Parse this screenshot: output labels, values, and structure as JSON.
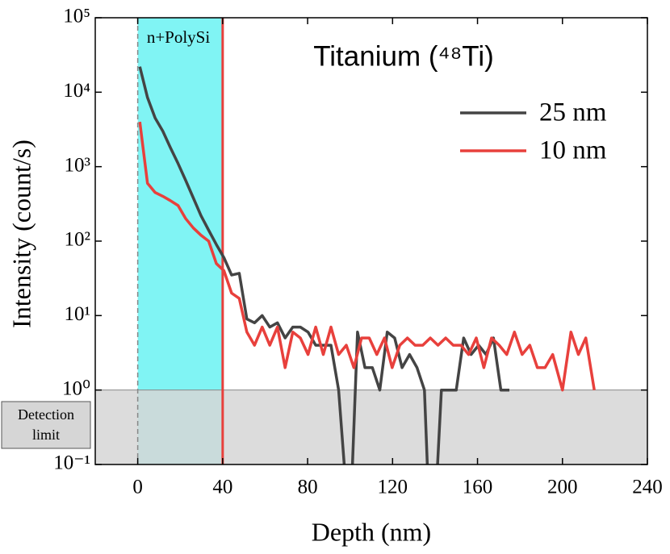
{
  "chart_data": {
    "type": "line",
    "title": "Titanium (⁴⁸Ti)",
    "x_label": "Depth (nm)",
    "y_label": "Intensity (count/s)",
    "log_y": true,
    "legend": "upper right",
    "xlim": [
      -20,
      240
    ],
    "xticks": [
      0,
      40,
      80,
      120,
      160,
      200,
      240
    ],
    "ylim": [
      0.1,
      100000
    ],
    "yticks": [
      {
        "value": 0.1,
        "label": "10⁻¹"
      },
      {
        "value": 1,
        "label": "10⁰"
      },
      {
        "value": 10,
        "label": "10¹"
      },
      {
        "value": 100,
        "label": "10²"
      },
      {
        "value": 1000,
        "label": "10³"
      },
      {
        "value": 10000,
        "label": "10⁴"
      },
      {
        "value": 100000,
        "label": "10⁵"
      }
    ],
    "region": {
      "label": "n+PolySi",
      "x": [
        0,
        40
      ],
      "color": "#80f4f4"
    },
    "boundary": {
      "x": 40,
      "color": "#e8403c"
    },
    "surface": {
      "x": 0,
      "color": "#888888"
    },
    "detection_limit": {
      "label": [
        "Detection",
        "limit"
      ],
      "y": 1,
      "color": "#d6d6d6"
    },
    "series": [
      {
        "name": "25 nm",
        "color": "#444444",
        "x": [
          1,
          4.6,
          8.2,
          11.8,
          15.4,
          19,
          22.6,
          26.2,
          29.8,
          33.4,
          37,
          40.6,
          44.2,
          47.8,
          51.4,
          55,
          58.6,
          62.2,
          65.8,
          69.4,
          73,
          76.6,
          80.2,
          83.8,
          87.4,
          91,
          94.6,
          97.5,
          101,
          103.5,
          107,
          110.5,
          114,
          117.5,
          121,
          124.5,
          128,
          131.5,
          135,
          136.5,
          141,
          143,
          146.5,
          150,
          153.5,
          157,
          160.5,
          164,
          167.5,
          171,
          175
        ],
        "values": [
          22000,
          8500,
          4500,
          3000,
          1800,
          1100,
          650,
          380,
          220,
          140,
          90,
          60,
          35,
          37,
          9,
          8,
          10,
          7,
          8,
          5,
          7,
          7,
          6,
          4,
          4,
          4,
          1,
          0.08,
          0.08,
          6,
          2,
          2,
          1,
          6,
          5,
          2,
          3,
          2,
          1,
          0.08,
          0.08,
          1,
          1,
          1,
          5,
          3,
          4,
          3,
          5,
          1,
          1
        ]
      },
      {
        "name": "10 nm",
        "color": "#e8403c",
        "x": [
          1,
          4.6,
          8.2,
          11.8,
          15.4,
          19,
          22.6,
          26.2,
          29.8,
          33.4,
          37,
          40.6,
          44.2,
          47.8,
          51.4,
          55,
          58.6,
          62.2,
          65.8,
          69.4,
          73,
          76.6,
          80.2,
          83.8,
          87.4,
          91,
          94.6,
          98.2,
          101.8,
          105.4,
          109,
          112.6,
          116.2,
          119.8,
          123.4,
          127,
          130.6,
          134.2,
          137.8,
          141.4,
          145,
          148.6,
          152.2,
          155.8,
          159.4,
          163,
          166.6,
          170.2,
          173.8,
          177.4,
          181,
          184.6,
          188.2,
          191.8,
          195.4,
          200,
          204,
          207.5,
          211,
          215
        ],
        "values": [
          4000,
          600,
          450,
          400,
          350,
          300,
          200,
          150,
          120,
          100,
          50,
          40,
          20,
          17,
          6,
          4,
          7,
          4,
          7,
          2,
          6,
          5,
          3,
          7,
          3,
          7,
          3,
          4,
          2,
          5,
          5,
          3,
          5,
          2,
          4,
          5,
          4,
          4,
          5,
          4,
          5,
          4,
          4,
          3,
          5,
          2,
          5,
          4,
          3,
          6,
          3,
          4,
          2,
          2,
          3,
          1,
          6,
          3,
          5,
          1
        ]
      }
    ]
  }
}
